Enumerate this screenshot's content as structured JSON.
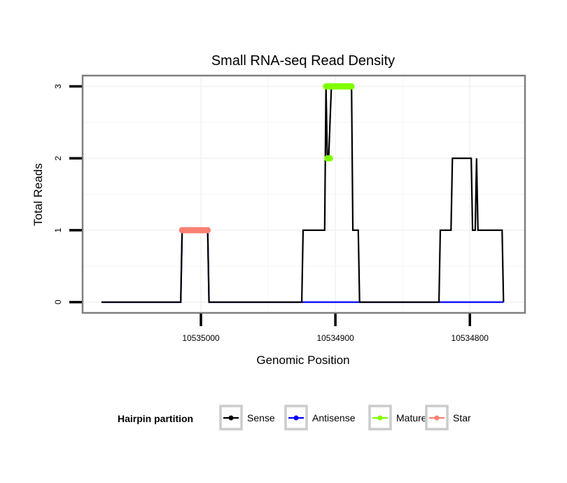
{
  "chart_data": {
    "type": "line",
    "title": "Small RNA-seq Read Density",
    "xlabel": "Genomic Position",
    "ylabel": "Total Reads",
    "x_reversed": true,
    "xlim": [
      10535088,
      10534759
    ],
    "ylim": [
      -0.15,
      3.15
    ],
    "x_ticks": [
      10535000,
      10534900,
      10534800
    ],
    "x_tick_labels": [
      "10535000",
      "10534900",
      "10534800"
    ],
    "y_ticks": [
      0,
      1,
      2,
      3
    ],
    "y_tick_labels": [
      "0",
      "1",
      "2",
      "3"
    ],
    "grid": true,
    "legend": {
      "title": "Hairpin partition",
      "placement": "bottom",
      "entries": [
        {
          "name": "Sense",
          "color": "#000000"
        },
        {
          "name": "Antisense",
          "color": "#0000ff"
        },
        {
          "name": "Mature",
          "color": "#7fff00"
        },
        {
          "name": "Star",
          "color": "#fa8072"
        }
      ]
    },
    "series": [
      {
        "name": "Antisense",
        "kind": "line",
        "color": "#0000ff",
        "x": [
          10535074,
          10535015,
          10535014,
          10534995,
          10534994,
          10534775
        ],
        "y": [
          0,
          0,
          1,
          1,
          0,
          0
        ]
      },
      {
        "name": "Sense",
        "kind": "line",
        "color": "#000000",
        "x": [
          10535074,
          10535015,
          10535014,
          10534995,
          10534994,
          10534925,
          10534924,
          10534908,
          10534907,
          10534906,
          10534905,
          10534903,
          10534888,
          10534887,
          10534883,
          10534882,
          10534823,
          10534822,
          10534814,
          10534813,
          10534799,
          10534798,
          10534796,
          10534795,
          10534794,
          10534776,
          10534775
        ],
        "y": [
          0,
          0,
          1,
          1,
          0,
          0,
          1,
          1,
          3,
          2,
          2,
          3,
          3,
          1,
          1,
          0,
          0,
          1,
          1,
          2,
          2,
          1,
          1,
          2,
          1,
          1,
          0
        ]
      },
      {
        "name": "Mature",
        "kind": "points",
        "color": "#7fff00",
        "x": [
          10534907,
          10534906,
          10534905,
          10534904,
          10534903,
          10534902,
          10534901,
          10534900,
          10534899,
          10534898,
          10534897,
          10534896,
          10534895,
          10534894,
          10534893,
          10534892,
          10534891,
          10534890,
          10534889,
          10534888,
          10534906,
          10534905,
          10534904
        ],
        "y": [
          3,
          3,
          3,
          3,
          3,
          3,
          3,
          3,
          3,
          3,
          3,
          3,
          3,
          3,
          3,
          3,
          3,
          3,
          3,
          3,
          2,
          2,
          2
        ]
      },
      {
        "name": "Star",
        "kind": "points",
        "color": "#fa8072",
        "x": [
          10535014,
          10535013,
          10535012,
          10535011,
          10535010,
          10535009,
          10535008,
          10535007,
          10535006,
          10535005,
          10535004,
          10535003,
          10535002,
          10535001,
          10535000,
          10534999,
          10534998,
          10534997,
          10534996,
          10534995
        ],
        "y": [
          1,
          1,
          1,
          1,
          1,
          1,
          1,
          1,
          1,
          1,
          1,
          1,
          1,
          1,
          1,
          1,
          1,
          1,
          1,
          1
        ]
      }
    ]
  }
}
